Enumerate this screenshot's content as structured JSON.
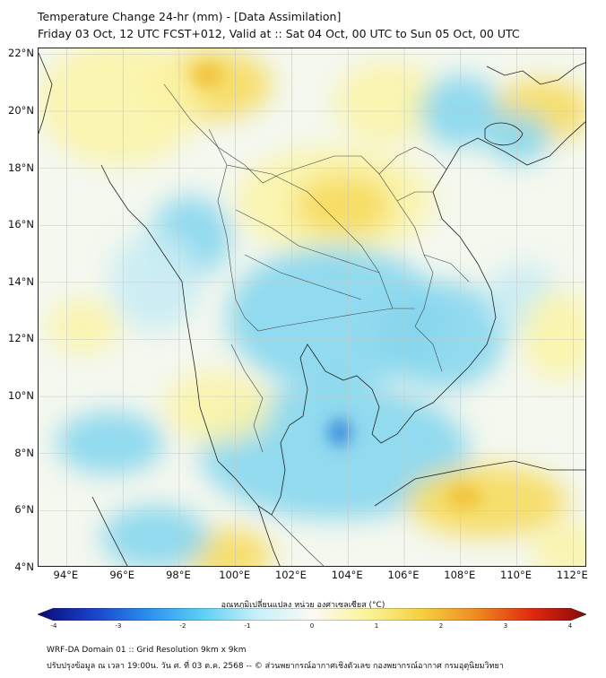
{
  "header": {
    "title": "Temperature Change 24-hr (mm) - [Data Assimilation]",
    "subtitle": "Friday 03 Oct, 12 UTC FCST+012, Valid at :: Sat 04 Oct, 00 UTC to Sun 05 Oct, 00 UTC"
  },
  "map": {
    "lat_labels": [
      "22°N",
      "20°N",
      "18°N",
      "16°N",
      "14°N",
      "12°N",
      "10°N",
      "8°N",
      "6°N",
      "4°N"
    ],
    "lon_labels": [
      "94°E",
      "96°E",
      "98°E",
      "100°E",
      "102°E",
      "104°E",
      "106°E",
      "108°E",
      "110°E",
      "112°E"
    ],
    "lat_range": [
      4,
      22.2
    ],
    "lon_range": [
      93,
      112.5
    ],
    "grid_lines": true,
    "colors": {
      "background": "#f4f8ef",
      "warm_light": "#fbf4a8",
      "warm": "#f6dc5e",
      "warm_strong": "#f2c23a",
      "cool_light": "#c8ecf4",
      "cool": "#86d6ee",
      "cool_strong": "#3f8fdc",
      "coastline": "#222222",
      "border": "#444444",
      "grid": "#c8c8c8"
    }
  },
  "colorbar": {
    "title": "อุณหภูมิเปลี่ยนแปลง หน่วย องศาเซลเซียส (°C)",
    "ticks": [
      "-4",
      "-3",
      "-2",
      "-1",
      "0",
      "1",
      "2",
      "3",
      "4"
    ],
    "min": -4,
    "max": 4,
    "colors": [
      "#0a0a7a",
      "#1a40c8",
      "#2a8ef0",
      "#5cd0f4",
      "#c8f0f8",
      "#fafaf4",
      "#fbf39a",
      "#f6d040",
      "#f08a20",
      "#e02a10",
      "#8a0808"
    ]
  },
  "footer": {
    "line1": "WRF-DA Domain 01 :: Grid Resolution 9km x 9km",
    "line2": "ปรับปรุงข้อมูล ณ เวลา 19:00น. วัน ศ. ที่ 03 ต.ค. 2568 -- © ส่วนพยากรณ์อากาศเชิงตัวเลข กองพยากรณ์อากาศ กรมอุตุนิยมวิทยา"
  }
}
